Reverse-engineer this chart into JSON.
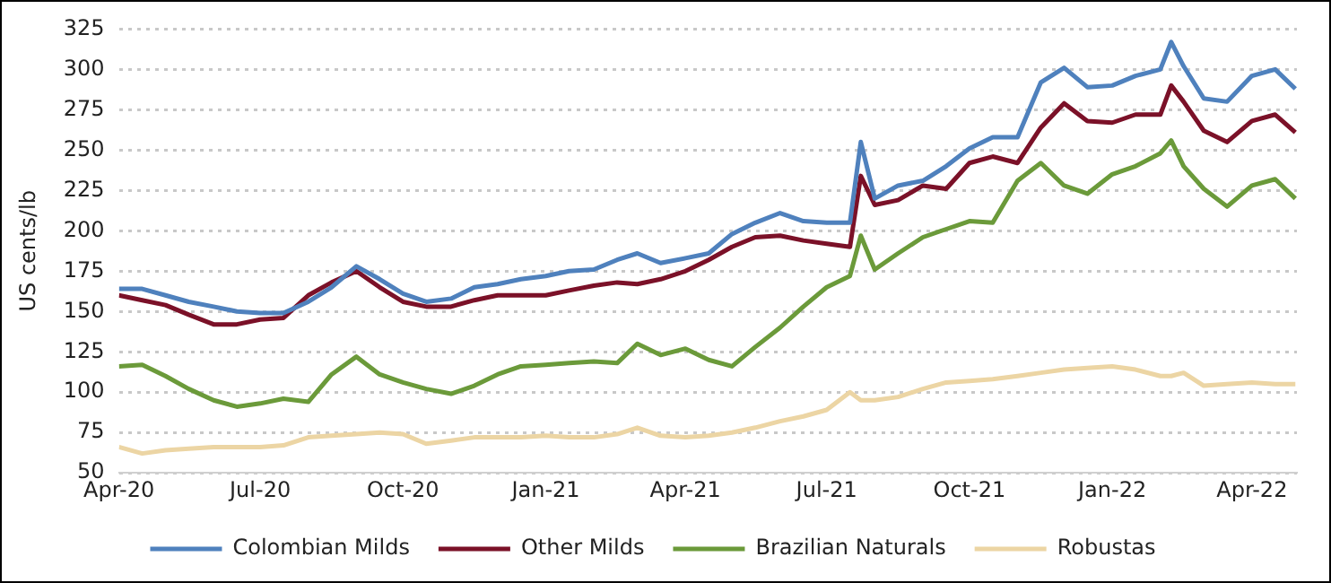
{
  "chart_data": {
    "type": "line",
    "ylabel": "US cents/lb",
    "x": [
      "2020-04-01",
      "2020-04-16",
      "2020-05-01",
      "2020-05-16",
      "2020-06-01",
      "2020-06-16",
      "2020-07-01",
      "2020-07-16",
      "2020-08-01",
      "2020-08-16",
      "2020-09-01",
      "2020-09-16",
      "2020-10-01",
      "2020-10-16",
      "2020-11-01",
      "2020-11-16",
      "2020-12-01",
      "2020-12-16",
      "2021-01-01",
      "2021-01-16",
      "2021-02-01",
      "2021-02-16",
      "2021-03-01",
      "2021-03-16",
      "2021-04-01",
      "2021-04-16",
      "2021-05-01",
      "2021-05-16",
      "2021-06-01",
      "2021-06-16",
      "2021-07-01",
      "2021-07-16",
      "2021-07-23",
      "2021-08-01",
      "2021-08-16",
      "2021-09-01",
      "2021-09-16",
      "2021-10-01",
      "2021-10-16",
      "2021-11-01",
      "2021-11-16",
      "2021-12-01",
      "2021-12-16",
      "2022-01-01",
      "2022-01-16",
      "2022-02-01",
      "2022-02-08",
      "2022-02-16",
      "2022-03-01",
      "2022-03-16",
      "2022-04-01",
      "2022-04-16",
      "2022-04-29"
    ],
    "series": [
      {
        "name": "Colombian Milds",
        "color": "#4f81bd",
        "values": [
          164,
          164,
          160,
          156,
          153,
          150,
          149,
          149,
          156,
          165,
          178,
          170,
          161,
          156,
          158,
          165,
          167,
          170,
          172,
          175,
          176,
          182,
          186,
          180,
          183,
          186,
          198,
          205,
          211,
          206,
          205,
          205,
          255,
          220,
          228,
          231,
          240,
          251,
          258,
          258,
          292,
          301,
          289,
          290,
          296,
          300,
          317,
          302,
          282,
          280,
          296,
          300,
          288
        ]
      },
      {
        "name": "Other Milds",
        "color": "#7b1128",
        "values": [
          160,
          157,
          154,
          148,
          142,
          142,
          145,
          146,
          160,
          168,
          175,
          165,
          156,
          153,
          153,
          157,
          160,
          160,
          160,
          163,
          166,
          168,
          167,
          170,
          175,
          182,
          190,
          196,
          197,
          194,
          192,
          190,
          234,
          216,
          219,
          228,
          226,
          242,
          246,
          242,
          264,
          279,
          268,
          267,
          272,
          272,
          290,
          280,
          262,
          255,
          268,
          272,
          261
        ]
      },
      {
        "name": "Brazilian Naturals",
        "color": "#6b9a3a",
        "values": [
          116,
          117,
          110,
          102,
          95,
          91,
          93,
          96,
          94,
          111,
          122,
          111,
          106,
          102,
          99,
          104,
          111,
          116,
          117,
          118,
          119,
          118,
          130,
          123,
          127,
          120,
          116,
          128,
          140,
          153,
          165,
          172,
          197,
          176,
          186,
          196,
          201,
          206,
          205,
          231,
          242,
          228,
          223,
          235,
          240,
          248,
          256,
          240,
          226,
          215,
          228,
          232,
          220
        ]
      },
      {
        "name": "Robustas",
        "color": "#ecd5a4",
        "values": [
          66,
          62,
          64,
          65,
          66,
          66,
          66,
          67,
          72,
          73,
          74,
          75,
          74,
          68,
          70,
          72,
          72,
          72,
          73,
          72,
          72,
          74,
          78,
          73,
          72,
          73,
          75,
          78,
          82,
          85,
          89,
          100,
          95,
          95,
          97,
          102,
          106,
          107,
          108,
          110,
          112,
          114,
          115,
          116,
          114,
          110,
          110,
          112,
          104,
          105,
          106,
          105,
          105
        ]
      }
    ],
    "xlim": [
      "2020-04-01",
      "2022-04-30"
    ],
    "xticks": [
      {
        "value": "2020-04-01",
        "label": "Apr-20"
      },
      {
        "value": "2020-07-01",
        "label": "Jul-20"
      },
      {
        "value": "2020-10-01",
        "label": "Oct-20"
      },
      {
        "value": "2021-01-01",
        "label": "Jan-21"
      },
      {
        "value": "2021-04-01",
        "label": "Apr-21"
      },
      {
        "value": "2021-07-01",
        "label": "Jul-21"
      },
      {
        "value": "2021-10-01",
        "label": "Oct-21"
      },
      {
        "value": "2022-01-01",
        "label": "Jan-22"
      },
      {
        "value": "2022-04-01",
        "label": "Apr-22"
      }
    ],
    "ylim": [
      50,
      325
    ],
    "yticks": [
      50,
      75,
      100,
      125,
      150,
      175,
      200,
      225,
      250,
      275,
      300,
      325
    ],
    "grid": "y",
    "legend": "bottom",
    "marker": "none",
    "line_style": "solid"
  }
}
